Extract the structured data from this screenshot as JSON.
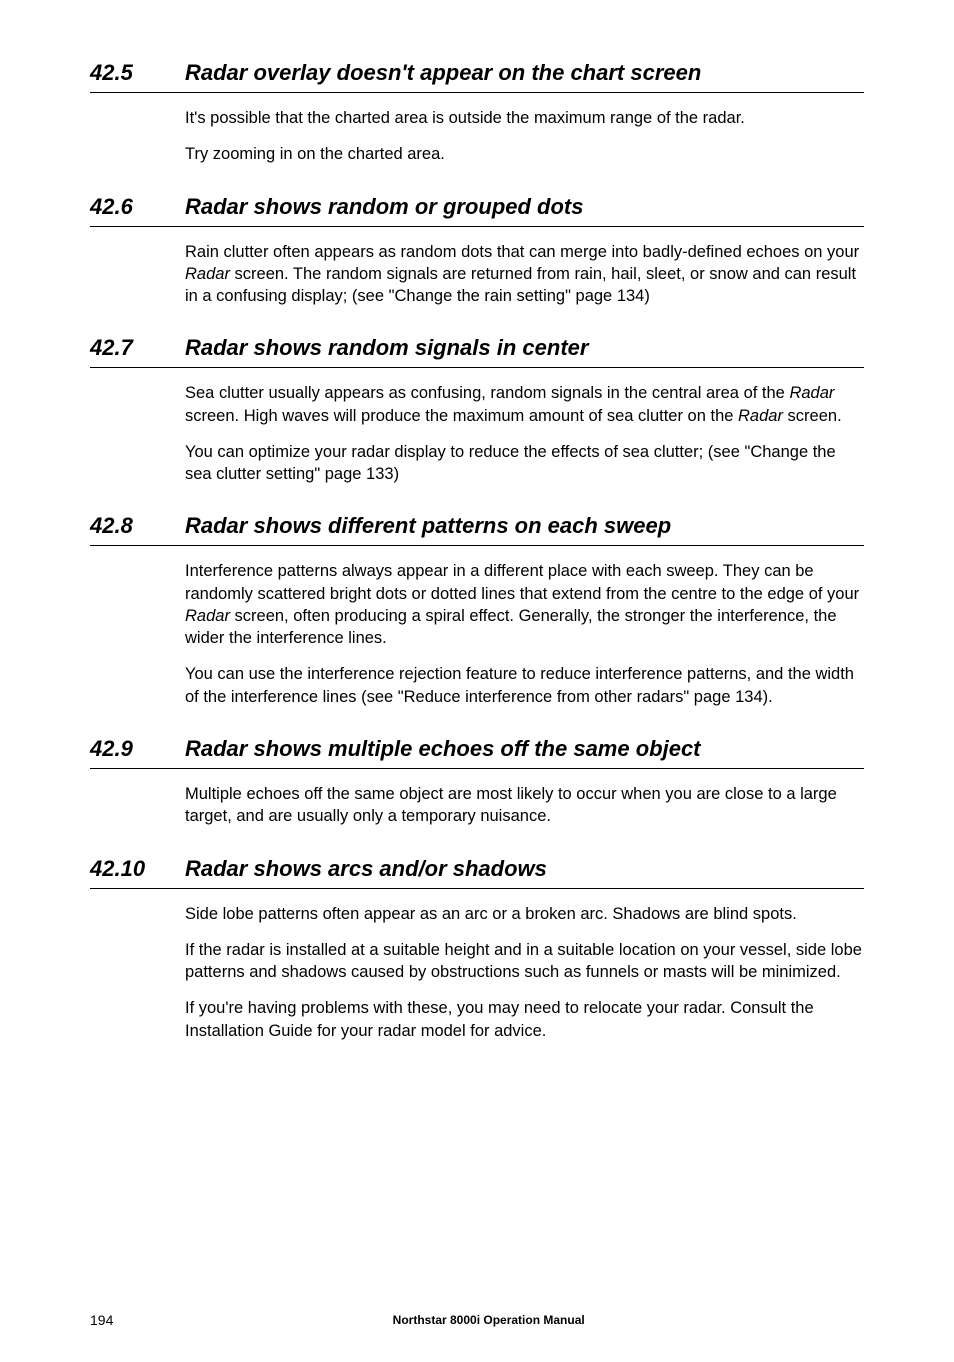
{
  "sections": [
    {
      "num": "42.5",
      "title": "Radar overlay doesn't appear on the chart screen",
      "paragraphs": [
        {
          "runs": [
            {
              "t": "It's possible that the charted area is outside the maximum range of the radar."
            }
          ]
        },
        {
          "runs": [
            {
              "t": "Try zooming in on the charted area."
            }
          ]
        }
      ]
    },
    {
      "num": "42.6",
      "title": "Radar shows random or grouped dots",
      "paragraphs": [
        {
          "runs": [
            {
              "t": "Rain clutter often appears as random dots that can merge into badly-defined echoes on your "
            },
            {
              "t": "Radar",
              "italic": true
            },
            {
              "t": " screen. The random signals are returned from rain, hail, sleet, or snow and can result in a confusing display;  (see \"Change the rain setting\" page 134)"
            }
          ]
        }
      ]
    },
    {
      "num": "42.7",
      "title": "Radar shows random signals in center",
      "paragraphs": [
        {
          "runs": [
            {
              "t": "Sea clutter usually appears as confusing, random signals in the central area of the "
            },
            {
              "t": "Radar",
              "italic": true
            },
            {
              "t": " screen. High waves will produce the maximum amount of sea clutter on the "
            },
            {
              "t": "Radar",
              "italic": true
            },
            {
              "t": " screen."
            }
          ]
        },
        {
          "runs": [
            {
              "t": "You can optimize your radar display to reduce the effects of sea clutter;  (see \"Change the sea clutter setting\" page 133)"
            }
          ]
        }
      ]
    },
    {
      "num": "42.8",
      "title": "Radar shows different patterns on each sweep",
      "paragraphs": [
        {
          "runs": [
            {
              "t": "Interference patterns always appear in a different place with each sweep. They can be randomly scattered bright dots or dotted lines that extend from the centre to the edge of your "
            },
            {
              "t": "Radar",
              "italic": true
            },
            {
              "t": " screen, often producing a spiral effect. Generally, the stronger the interference, the wider the interference lines."
            }
          ]
        },
        {
          "runs": [
            {
              "t": "You can use the interference rejection feature to reduce interference patterns, and the width of the interference lines (see \"Reduce interference from other radars\" page 134)."
            }
          ]
        }
      ]
    },
    {
      "num": "42.9",
      "title": "Radar shows multiple echoes off the same object",
      "paragraphs": [
        {
          "runs": [
            {
              "t": "Multiple echoes off the same object are most likely to occur when you are close to a large target, and are usually only a temporary nuisance."
            }
          ]
        }
      ]
    },
    {
      "num": "42.10",
      "title": "Radar shows arcs and/or shadows",
      "paragraphs": [
        {
          "runs": [
            {
              "t": "Side lobe patterns often appear as an arc or a broken arc. Shadows are blind spots."
            }
          ]
        },
        {
          "runs": [
            {
              "t": "If the radar is installed at a suitable height and in a suitable location on your vessel, side lobe patterns and shadows caused by obstructions such as funnels or masts will be minimized."
            }
          ]
        },
        {
          "runs": [
            {
              "t": "If you're having problems with these, you may need to relocate your radar. Consult the Installation Guide for your radar model for advice."
            }
          ]
        }
      ]
    }
  ],
  "footer": {
    "page_num": "194",
    "title": "Northstar 8000i Operation Manual"
  }
}
